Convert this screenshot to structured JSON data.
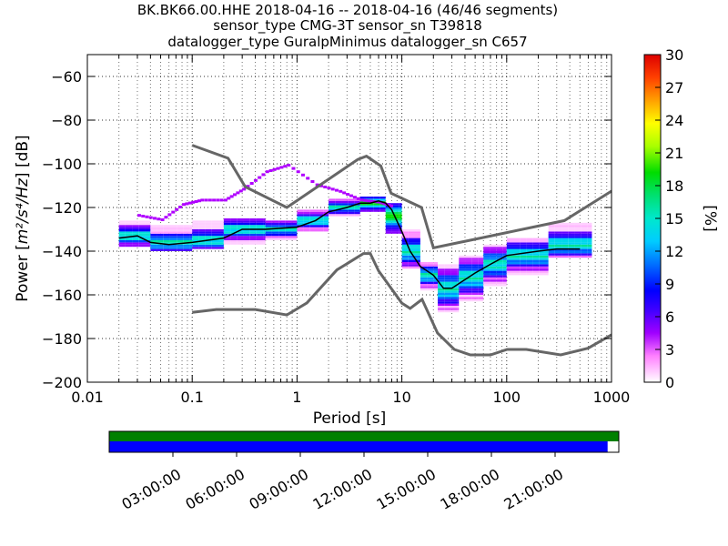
{
  "chart_data": {
    "type": "heatmap",
    "title_lines": [
      "BK.BK66.00.HHE   2018-04-16 -- 2018-04-16  (46/46 segments)",
      "sensor_type CMG-3T sensor_sn T39818",
      "datalogger_type GuralpMinimus datalogger_sn C657"
    ],
    "xlabel": "Period [s]",
    "ylabel_prefix": "Power [",
    "ylabel_units": "m²/s⁴/Hz",
    "ylabel_suffix": "] [dB]",
    "xscale": "log",
    "xlim": [
      0.01,
      1000
    ],
    "ylim": [
      -200,
      -50
    ],
    "x_ticks": [
      0.01,
      0.1,
      1,
      10,
      100,
      1000
    ],
    "x_tick_labels": [
      "0.01",
      "0.1",
      "1",
      "10",
      "100",
      "1000"
    ],
    "y_ticks": [
      -200,
      -180,
      -160,
      -140,
      -120,
      -100,
      -80,
      -60
    ],
    "y_tick_labels": [
      "−200",
      "−180",
      "−160",
      "−140",
      "−120",
      "−100",
      "−80",
      "−60"
    ],
    "grid": "dotted",
    "colorbar": {
      "label": "[%]",
      "range": [
        0,
        30
      ],
      "ticks": [
        0,
        3,
        6,
        9,
        12,
        15,
        18,
        21,
        24,
        27,
        30
      ],
      "tick_labels": [
        "0",
        "3",
        "6",
        "9",
        "12",
        "15",
        "18",
        "21",
        "24",
        "27",
        "30"
      ],
      "colormap": "pqlx"
    },
    "mode_line": {
      "period": [
        0.02,
        0.03,
        0.04,
        0.06,
        0.1,
        0.2,
        0.3,
        0.5,
        1,
        1.5,
        2,
        3,
        4,
        5,
        6,
        7,
        8,
        10,
        12,
        15,
        20,
        25,
        30,
        40,
        50,
        70,
        100,
        200,
        300,
        500
      ],
      "power": [
        -134,
        -133,
        -136,
        -137,
        -136,
        -134,
        -130,
        -130,
        -129,
        -126,
        -122,
        -120,
        -118,
        -118,
        -117,
        -118,
        -121,
        -131,
        -140,
        -147,
        -151,
        -157,
        -157,
        -153,
        -150,
        -146,
        -142,
        -140,
        -139,
        -139
      ]
    },
    "nhnm": {
      "period": [
        0.1,
        0.22,
        0.32,
        0.8,
        3.8,
        4.6,
        6.3,
        7.9,
        15.4,
        20,
        354.8,
        1000
      ],
      "power": [
        -91.5,
        -97.4,
        -110.5,
        -120,
        -98,
        -96.5,
        -101,
        -113.5,
        -120,
        -138.5,
        -126,
        -112.5
      ]
    },
    "nlnm": {
      "period": [
        0.1,
        0.17,
        0.4,
        0.8,
        1.24,
        2.4,
        4.3,
        5.0,
        6.0,
        10.0,
        12.0,
        15.6,
        21.9,
        31.6,
        45,
        70,
        101,
        154,
        328,
        600,
        1000
      ],
      "power": [
        -168,
        -166.7,
        -166.7,
        -169.2,
        -163.7,
        -148.6,
        -141.1,
        -141.1,
        -149,
        -163.8,
        -166.2,
        -162.1,
        -177.5,
        -185,
        -187.5,
        -187.5,
        -185,
        -185,
        -187.5,
        -184.4,
        -178.3
      ]
    },
    "density_bands": [
      {
        "pmin": 0.02,
        "pmax": 0.04,
        "lo": -138,
        "hi": -126,
        "center": -133
      },
      {
        "pmin": 0.04,
        "pmax": 0.1,
        "lo": -140,
        "hi": -128,
        "center": -136
      },
      {
        "pmin": 0.1,
        "pmax": 0.2,
        "lo": -139,
        "hi": -126,
        "center": -135
      },
      {
        "pmin": 0.2,
        "pmax": 0.5,
        "lo": -137,
        "hi": -125,
        "center": -130
      },
      {
        "pmin": 0.5,
        "pmax": 1,
        "lo": -135,
        "hi": -126,
        "center": -130
      },
      {
        "pmin": 1,
        "pmax": 2,
        "lo": -131,
        "hi": -121,
        "center": -126
      },
      {
        "pmin": 2,
        "pmax": 4,
        "lo": -124,
        "hi": -116,
        "center": -120
      },
      {
        "pmin": 4,
        "pmax": 7,
        "lo": -122,
        "hi": -115,
        "center": -118
      },
      {
        "pmin": 7,
        "pmax": 10,
        "lo": -132,
        "hi": -118,
        "center": -124
      },
      {
        "pmin": 10,
        "pmax": 15,
        "lo": -148,
        "hi": -130,
        "center": -140
      },
      {
        "pmin": 15,
        "pmax": 22,
        "lo": -158,
        "hi": -145,
        "center": -151
      },
      {
        "pmin": 22,
        "pmax": 35,
        "lo": -168,
        "hi": -146,
        "center": -157
      },
      {
        "pmin": 35,
        "pmax": 60,
        "lo": -163,
        "hi": -142,
        "center": -152
      },
      {
        "pmin": 60,
        "pmax": 100,
        "lo": -156,
        "hi": -137,
        "center": -146
      },
      {
        "pmin": 100,
        "pmax": 250,
        "lo": -151,
        "hi": -134,
        "center": -142
      },
      {
        "pmin": 250,
        "pmax": 650,
        "lo": -143,
        "hi": -127,
        "center": -137
      }
    ],
    "outlier_line": {
      "period": [
        0.03,
        0.05,
        0.08,
        0.12,
        0.2,
        0.3,
        0.5,
        0.8,
        1.5,
        2.5,
        4,
        6,
        8
      ],
      "power": [
        -124,
        -126,
        -119,
        -117,
        -117,
        -112,
        -104,
        -101,
        -110,
        -113,
        -117,
        -118,
        -120
      ]
    },
    "coverage_bar": {
      "time_tick_labels": [
        "03:00:00",
        "06:00:00",
        "09:00:00",
        "12:00:00",
        "15:00:00",
        "18:00:00",
        "21:00:00"
      ],
      "data_fraction": 0.978,
      "gap_fraction": 0.0,
      "data_color": "#0000ff",
      "gap_color": "#008000"
    }
  }
}
